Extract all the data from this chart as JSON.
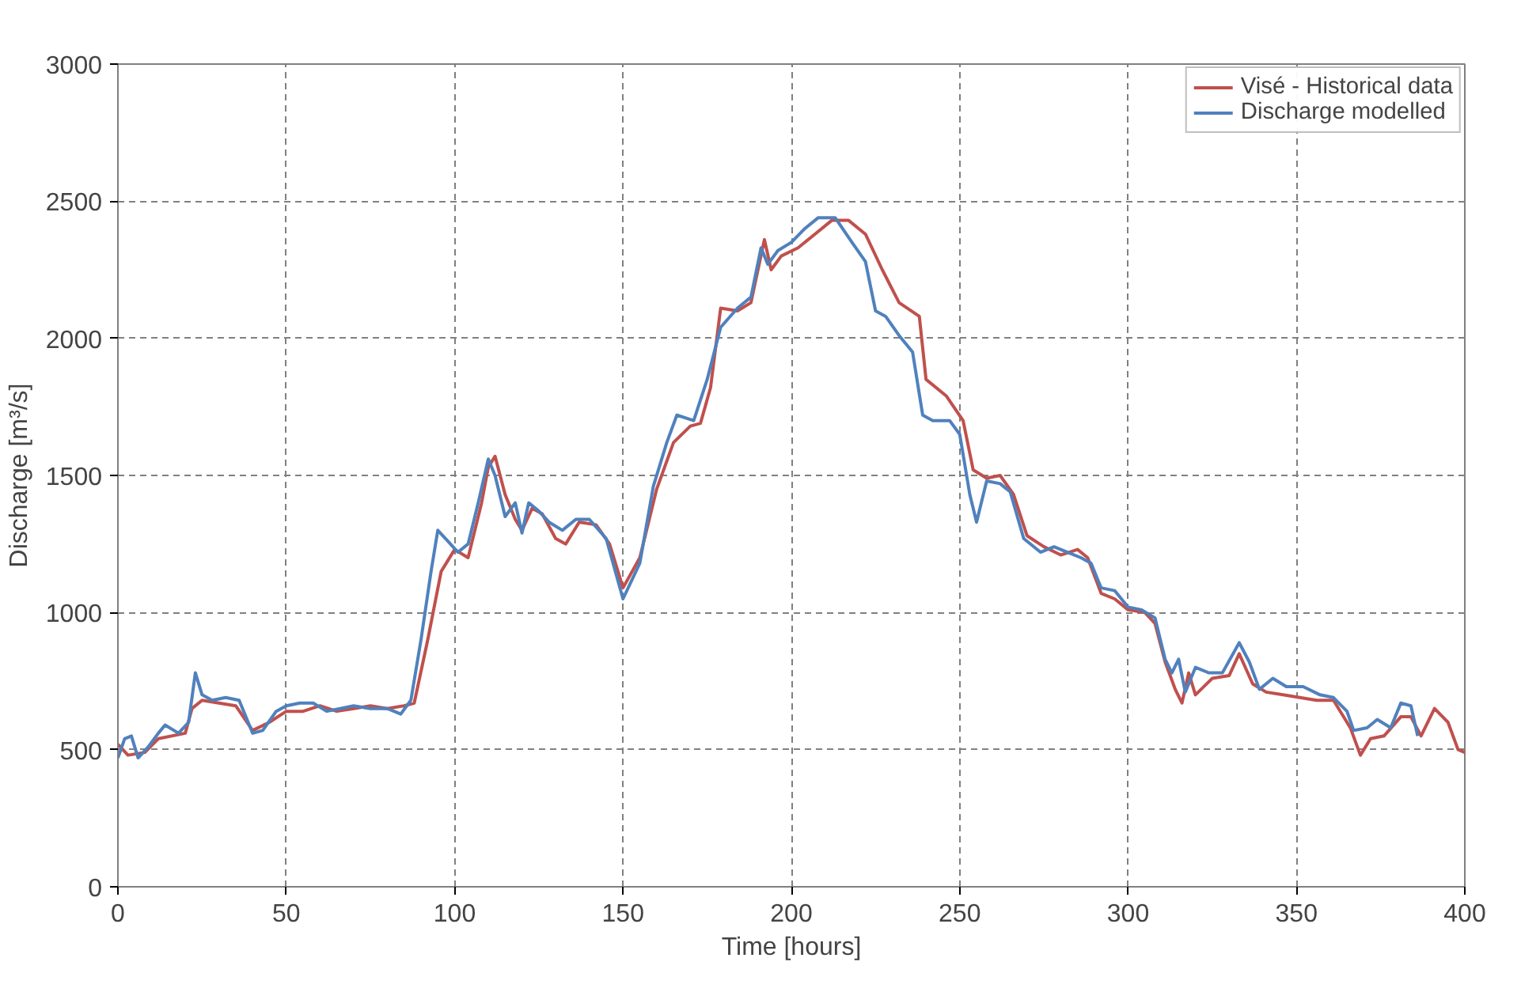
{
  "chart_data": {
    "type": "line",
    "xlabel": "Time [hours]",
    "ylabel": "Discharge [m³/s]",
    "xlim": [
      0,
      400
    ],
    "ylim": [
      0,
      3000
    ],
    "xticks": [
      0,
      50,
      100,
      150,
      200,
      250,
      300,
      350,
      400
    ],
    "yticks": [
      0,
      500,
      1000,
      1500,
      2000,
      2500,
      3000
    ],
    "grid": true,
    "legend": "top right",
    "marker": "none",
    "line_style": "solid",
    "series": [
      {
        "name": "Visé - Historical data",
        "color": "#c0504d",
        "x": [
          0,
          3,
          8,
          12,
          20,
          22,
          25,
          30,
          35,
          40,
          45,
          50,
          55,
          60,
          65,
          70,
          75,
          80,
          85,
          88,
          92,
          96,
          100,
          104,
          108,
          110,
          112,
          115,
          118,
          120,
          123,
          126,
          130,
          133,
          137,
          142,
          146,
          150,
          155,
          160,
          165,
          170,
          173,
          176,
          179,
          184,
          188,
          192,
          194,
          197,
          202,
          207,
          212,
          217,
          222,
          227,
          232,
          238,
          240,
          246,
          251,
          254,
          258,
          262,
          266,
          270,
          275,
          280,
          285,
          288,
          292,
          296,
          300,
          305,
          308,
          311,
          314,
          316,
          318,
          320,
          325,
          330,
          333,
          337,
          341,
          346,
          351,
          356,
          361,
          366,
          369,
          372,
          376,
          381,
          384,
          387,
          391,
          395,
          398,
          400
        ],
        "values": [
          520,
          480,
          490,
          540,
          560,
          650,
          680,
          670,
          660,
          570,
          600,
          640,
          640,
          660,
          640,
          650,
          660,
          650,
          660,
          670,
          900,
          1150,
          1230,
          1200,
          1400,
          1530,
          1570,
          1430,
          1340,
          1300,
          1380,
          1360,
          1270,
          1250,
          1330,
          1320,
          1250,
          1090,
          1200,
          1450,
          1620,
          1680,
          1690,
          1820,
          2110,
          2100,
          2130,
          2360,
          2250,
          2300,
          2330,
          2380,
          2430,
          2430,
          2380,
          2250,
          2130,
          2080,
          1850,
          1790,
          1700,
          1520,
          1490,
          1500,
          1430,
          1280,
          1240,
          1210,
          1230,
          1200,
          1070,
          1050,
          1010,
          1000,
          960,
          820,
          720,
          670,
          780,
          700,
          760,
          770,
          850,
          740,
          710,
          700,
          690,
          680,
          680,
          580,
          480,
          540,
          550,
          620,
          620,
          550,
          650,
          600,
          500,
          490
        ]
      },
      {
        "name": "Discharge modelled",
        "color": "#4f81bd",
        "x": [
          0,
          2,
          4,
          6,
          9,
          12,
          14,
          18,
          21,
          23,
          25,
          28,
          32,
          36,
          40,
          43,
          47,
          50,
          54,
          58,
          62,
          66,
          70,
          75,
          80,
          84,
          87,
          90,
          93,
          95,
          98,
          101,
          104,
          107,
          110,
          112,
          115,
          118,
          120,
          122,
          125,
          128,
          132,
          136,
          140,
          145,
          150,
          155,
          159,
          163,
          166,
          171,
          175,
          179,
          184,
          188,
          191,
          193,
          196,
          200,
          204,
          208,
          213,
          218,
          222,
          225,
          228,
          232,
          236,
          239,
          242,
          247,
          250,
          253,
          255,
          258,
          262,
          265,
          269,
          274,
          278,
          282,
          286,
          289,
          292,
          296,
          300,
          304,
          308,
          311,
          313,
          315,
          317,
          320,
          324,
          328,
          333,
          336,
          339,
          343,
          347,
          352,
          357,
          361,
          365,
          367,
          371,
          374,
          378,
          381,
          384,
          386
        ],
        "values": [
          470,
          540,
          550,
          470,
          510,
          560,
          590,
          560,
          600,
          780,
          700,
          680,
          690,
          680,
          560,
          570,
          640,
          660,
          670,
          670,
          640,
          650,
          660,
          650,
          650,
          630,
          680,
          900,
          1150,
          1300,
          1260,
          1220,
          1250,
          1400,
          1560,
          1500,
          1350,
          1400,
          1290,
          1400,
          1370,
          1330,
          1300,
          1340,
          1340,
          1270,
          1050,
          1180,
          1460,
          1620,
          1720,
          1700,
          1850,
          2040,
          2110,
          2150,
          2330,
          2270,
          2320,
          2350,
          2400,
          2440,
          2440,
          2350,
          2280,
          2100,
          2080,
          2010,
          1950,
          1720,
          1700,
          1700,
          1650,
          1430,
          1330,
          1480,
          1470,
          1440,
          1270,
          1220,
          1240,
          1220,
          1200,
          1180,
          1090,
          1080,
          1020,
          1010,
          980,
          830,
          780,
          830,
          710,
          800,
          780,
          780,
          890,
          820,
          720,
          760,
          730,
          730,
          700,
          690,
          640,
          570,
          580,
          610,
          580,
          670,
          660,
          550
        ]
      }
    ]
  }
}
